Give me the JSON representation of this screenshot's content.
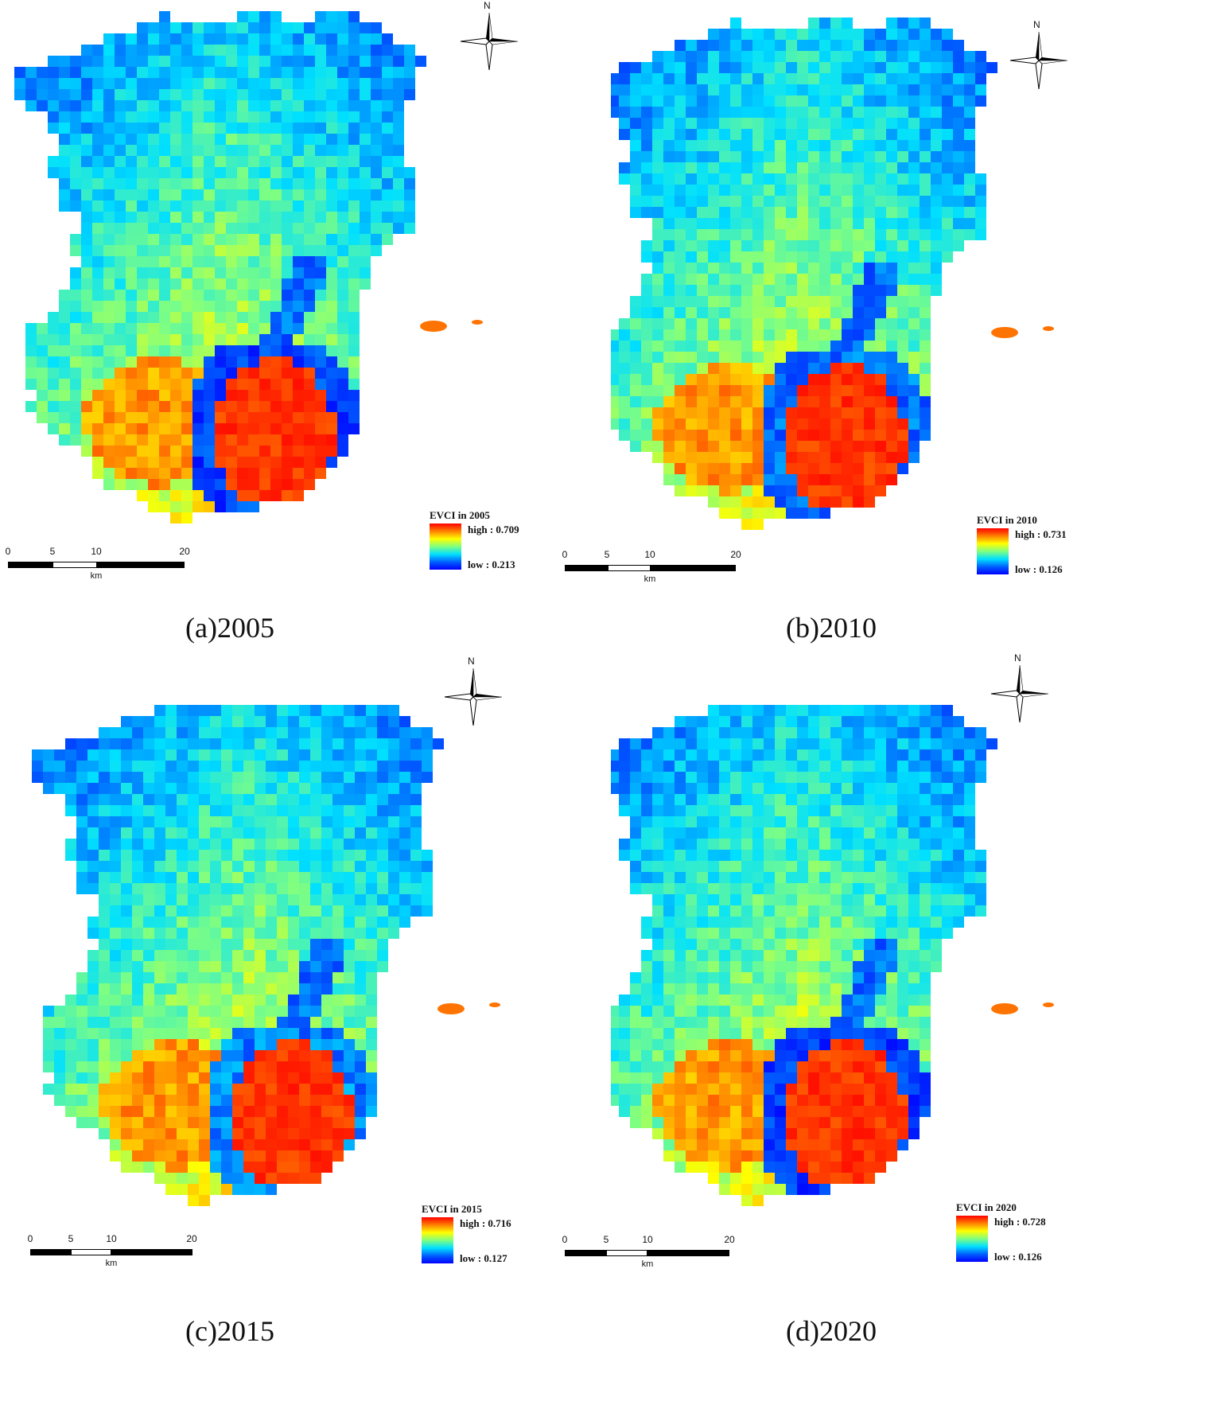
{
  "figure": {
    "panels": [
      {
        "caption": "(a)2005",
        "legend_title": "EVCI in 2005",
        "legend_high": "high : 0.709",
        "legend_low": "low : 0.213",
        "evci_high": 0.709,
        "evci_low": 0.213
      },
      {
        "caption": "(b)2010",
        "legend_title": "EVCI in 2010",
        "legend_high": "high : 0.731",
        "legend_low": "low : 0.126",
        "evci_high": 0.731,
        "evci_low": 0.126
      },
      {
        "caption": "(c)2015",
        "legend_title": "EVCI in 2015",
        "legend_high": "high : 0.716",
        "legend_low": "low : 0.127",
        "evci_high": 0.716,
        "evci_low": 0.127
      },
      {
        "caption": "(d)2020",
        "legend_title": "EVCI in 2020",
        "legend_high": "high : 0.728",
        "legend_low": "low : 0.126",
        "evci_high": 0.728,
        "evci_low": 0.126
      }
    ],
    "north_label": "N",
    "scale_ticks": [
      "0",
      "5",
      "10",
      "20"
    ],
    "scale_unit": "km",
    "colormap": [
      "#0000ff",
      "#0060ff",
      "#00e0ff",
      "#80ff80",
      "#ffff00",
      "#ff8000",
      "#ff0000"
    ]
  }
}
